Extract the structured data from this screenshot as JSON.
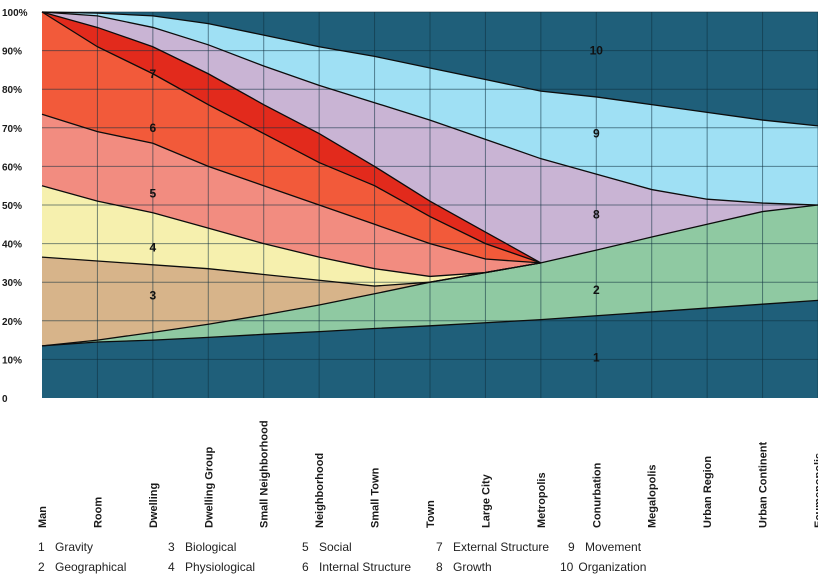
{
  "chart_data": {
    "type": "area",
    "title": "",
    "xlabel": "",
    "ylabel": "",
    "ylim": [
      0,
      100
    ],
    "y_ticks": [
      "0",
      "10%",
      "20%",
      "30%",
      "40%",
      "50%",
      "60%",
      "70%",
      "80%",
      "90%",
      "100%"
    ],
    "categories": [
      "Man",
      "Room",
      "Dwelling",
      "Dwelling Group",
      "Small Neighborhood",
      "Neighborhood",
      "Small Town",
      "Town",
      "Large City",
      "Metropolis",
      "Conurbation",
      "Megalopolis",
      "Urban Region",
      "Urban Continent",
      "Ecumenopolis"
    ],
    "grid": true,
    "colors": {
      "background": "#1f5f7a",
      "1": "#1f5f7a",
      "2": "#8fc9a2",
      "3": "#d7b48a",
      "4": "#f6f0ae",
      "5": "#f28c80",
      "6": "#f25a3a",
      "7": "#e22a1c",
      "8": "#c9b4d4",
      "9": "#9fe0f4",
      "10": "#1f5f7a",
      "gridline": "#0d2e3e",
      "boundary": "#0c0c0c"
    },
    "boundaries": [
      {
        "name": "1/2",
        "values": [
          13.5,
          14.5,
          15,
          15.7,
          16.5,
          17.2,
          18,
          18.7,
          19.5,
          20.3,
          21.3,
          22.3,
          23.3,
          24.3,
          25.3
        ]
      },
      {
        "name": "2/3",
        "values": [
          13.5,
          15,
          17,
          19.1,
          21.5,
          24.1,
          27,
          30,
          32.5,
          35,
          38.3,
          41.7,
          45,
          48.3,
          50
        ]
      },
      {
        "name": "3/4",
        "values": [
          36.5,
          35.5,
          34.5,
          33.5,
          32,
          30.5,
          29,
          30,
          32.5,
          35,
          null,
          null,
          null,
          null,
          null
        ]
      },
      {
        "name": "4/5",
        "values": [
          55,
          51,
          48,
          44,
          40,
          36.5,
          33.5,
          31.5,
          32.5,
          35,
          null,
          null,
          null,
          null,
          null
        ]
      },
      {
        "name": "5/6",
        "values": [
          73.5,
          69,
          66,
          60,
          55,
          50,
          45,
          40,
          36,
          35,
          null,
          null,
          null,
          null,
          null
        ]
      },
      {
        "name": "6/7",
        "values": [
          100,
          91,
          84,
          76,
          68.5,
          61,
          55,
          47,
          40,
          35,
          null,
          null,
          null,
          null,
          null
        ]
      },
      {
        "name": "7/8",
        "values": [
          100,
          96,
          91,
          84,
          76,
          68.5,
          60,
          51,
          43,
          35,
          null,
          null,
          null,
          null,
          null
        ]
      },
      {
        "name": "8/9",
        "values": [
          100,
          99,
          96,
          91.5,
          86,
          81,
          76.5,
          72,
          67,
          62,
          58,
          54,
          51.5,
          50.5,
          50
        ]
      },
      {
        "name": "9/10",
        "values": [
          100,
          99.7,
          99,
          97,
          94,
          91,
          88.5,
          85.5,
          82.5,
          79.5,
          78,
          76,
          74,
          72,
          70.5
        ]
      }
    ],
    "region_labels": [
      {
        "id": "1",
        "text": "1",
        "x": 10,
        "y": 10.5
      },
      {
        "id": "2",
        "text": "2",
        "x": 10,
        "y": 28
      },
      {
        "id": "3",
        "text": "3",
        "x": 2,
        "y": 26.5
      },
      {
        "id": "4",
        "text": "4",
        "x": 2,
        "y": 39
      },
      {
        "id": "5",
        "text": "5",
        "x": 2,
        "y": 53
      },
      {
        "id": "6",
        "text": "6",
        "x": 2,
        "y": 70
      },
      {
        "id": "7",
        "text": "7",
        "x": 2,
        "y": 84
      },
      {
        "id": "8",
        "text": "8",
        "x": 10,
        "y": 47.5
      },
      {
        "id": "9",
        "text": "9",
        "x": 10,
        "y": 68.5
      },
      {
        "id": "10",
        "text": "10",
        "x": 10,
        "y": 90
      }
    ]
  },
  "legend": [
    {
      "num": "1",
      "label": "Gravity"
    },
    {
      "num": "2",
      "label": "Geographical"
    },
    {
      "num": "3",
      "label": "Biological"
    },
    {
      "num": "4",
      "label": "Physiological"
    },
    {
      "num": "5",
      "label": "Social"
    },
    {
      "num": "6",
      "label": "Internal Structure"
    },
    {
      "num": "7",
      "label": "External Structure"
    },
    {
      "num": "8",
      "label": "Growth"
    },
    {
      "num": "9",
      "label": "Movement"
    },
    {
      "num": "10",
      "label": "Organization"
    }
  ]
}
